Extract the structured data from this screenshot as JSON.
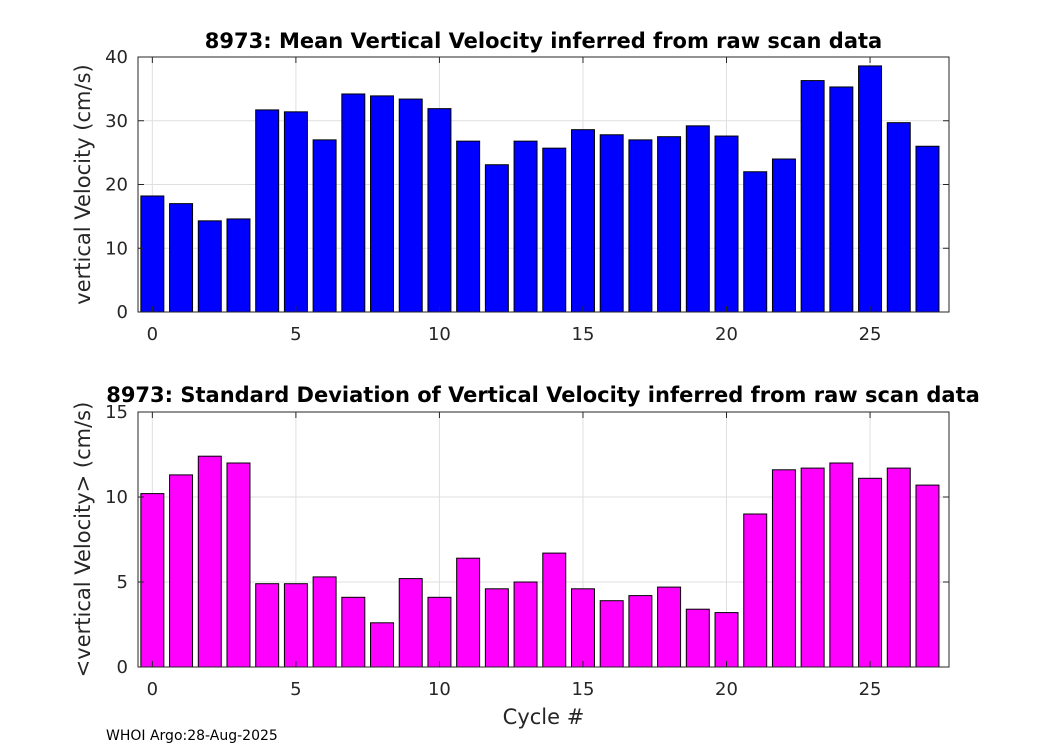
{
  "chart_data": [
    {
      "type": "bar",
      "title": "8973: Mean Vertical Velocity inferred from raw scan data",
      "xlabel": "",
      "ylabel": "vertical Velocity (cm/s)",
      "x": [
        0,
        1,
        2,
        3,
        4,
        5,
        6,
        7,
        8,
        9,
        10,
        11,
        12,
        13,
        14,
        15,
        16,
        17,
        18,
        19,
        20,
        21,
        22,
        23,
        24,
        25,
        26,
        27
      ],
      "values": [
        18.2,
        17.0,
        14.3,
        14.6,
        31.7,
        31.4,
        27.0,
        34.2,
        33.9,
        33.4,
        31.9,
        26.8,
        23.1,
        26.8,
        25.7,
        28.6,
        27.8,
        27.0,
        27.5,
        29.2,
        27.6,
        22.0,
        24.0,
        36.3,
        35.3,
        38.6,
        29.7,
        26.0
      ],
      "xlim": [
        -0.5,
        27.75
      ],
      "ylim": [
        0,
        40
      ],
      "xticks": [
        0,
        5,
        10,
        15,
        20,
        25
      ],
      "yticks": [
        0,
        10,
        20,
        30,
        40
      ],
      "bar_color": "#0000ff",
      "grid": true
    },
    {
      "type": "bar",
      "title": "8973: Standard Deviation of Vertical Velocity inferred from raw scan data",
      "xlabel": "Cycle #",
      "ylabel": "<vertical Velocity> (cm/s)",
      "x": [
        0,
        1,
        2,
        3,
        4,
        5,
        6,
        7,
        8,
        9,
        10,
        11,
        12,
        13,
        14,
        15,
        16,
        17,
        18,
        19,
        20,
        21,
        22,
        23,
        24,
        25,
        26,
        27
      ],
      "values": [
        10.2,
        11.3,
        12.4,
        12.0,
        4.9,
        4.9,
        5.3,
        4.1,
        2.6,
        5.2,
        4.1,
        6.4,
        4.6,
        5.0,
        6.7,
        4.6,
        3.9,
        4.2,
        4.7,
        3.4,
        3.2,
        9.0,
        11.6,
        11.7,
        12.0,
        11.1,
        11.7,
        10.7
      ],
      "xlim": [
        -0.5,
        27.75
      ],
      "ylim": [
        0,
        15
      ],
      "xticks": [
        0,
        5,
        10,
        15,
        20,
        25
      ],
      "yticks": [
        0,
        5,
        10,
        15
      ],
      "bar_color": "#ff00ff",
      "grid": true
    }
  ],
  "footer": "WHOI Argo:28-Aug-2025"
}
